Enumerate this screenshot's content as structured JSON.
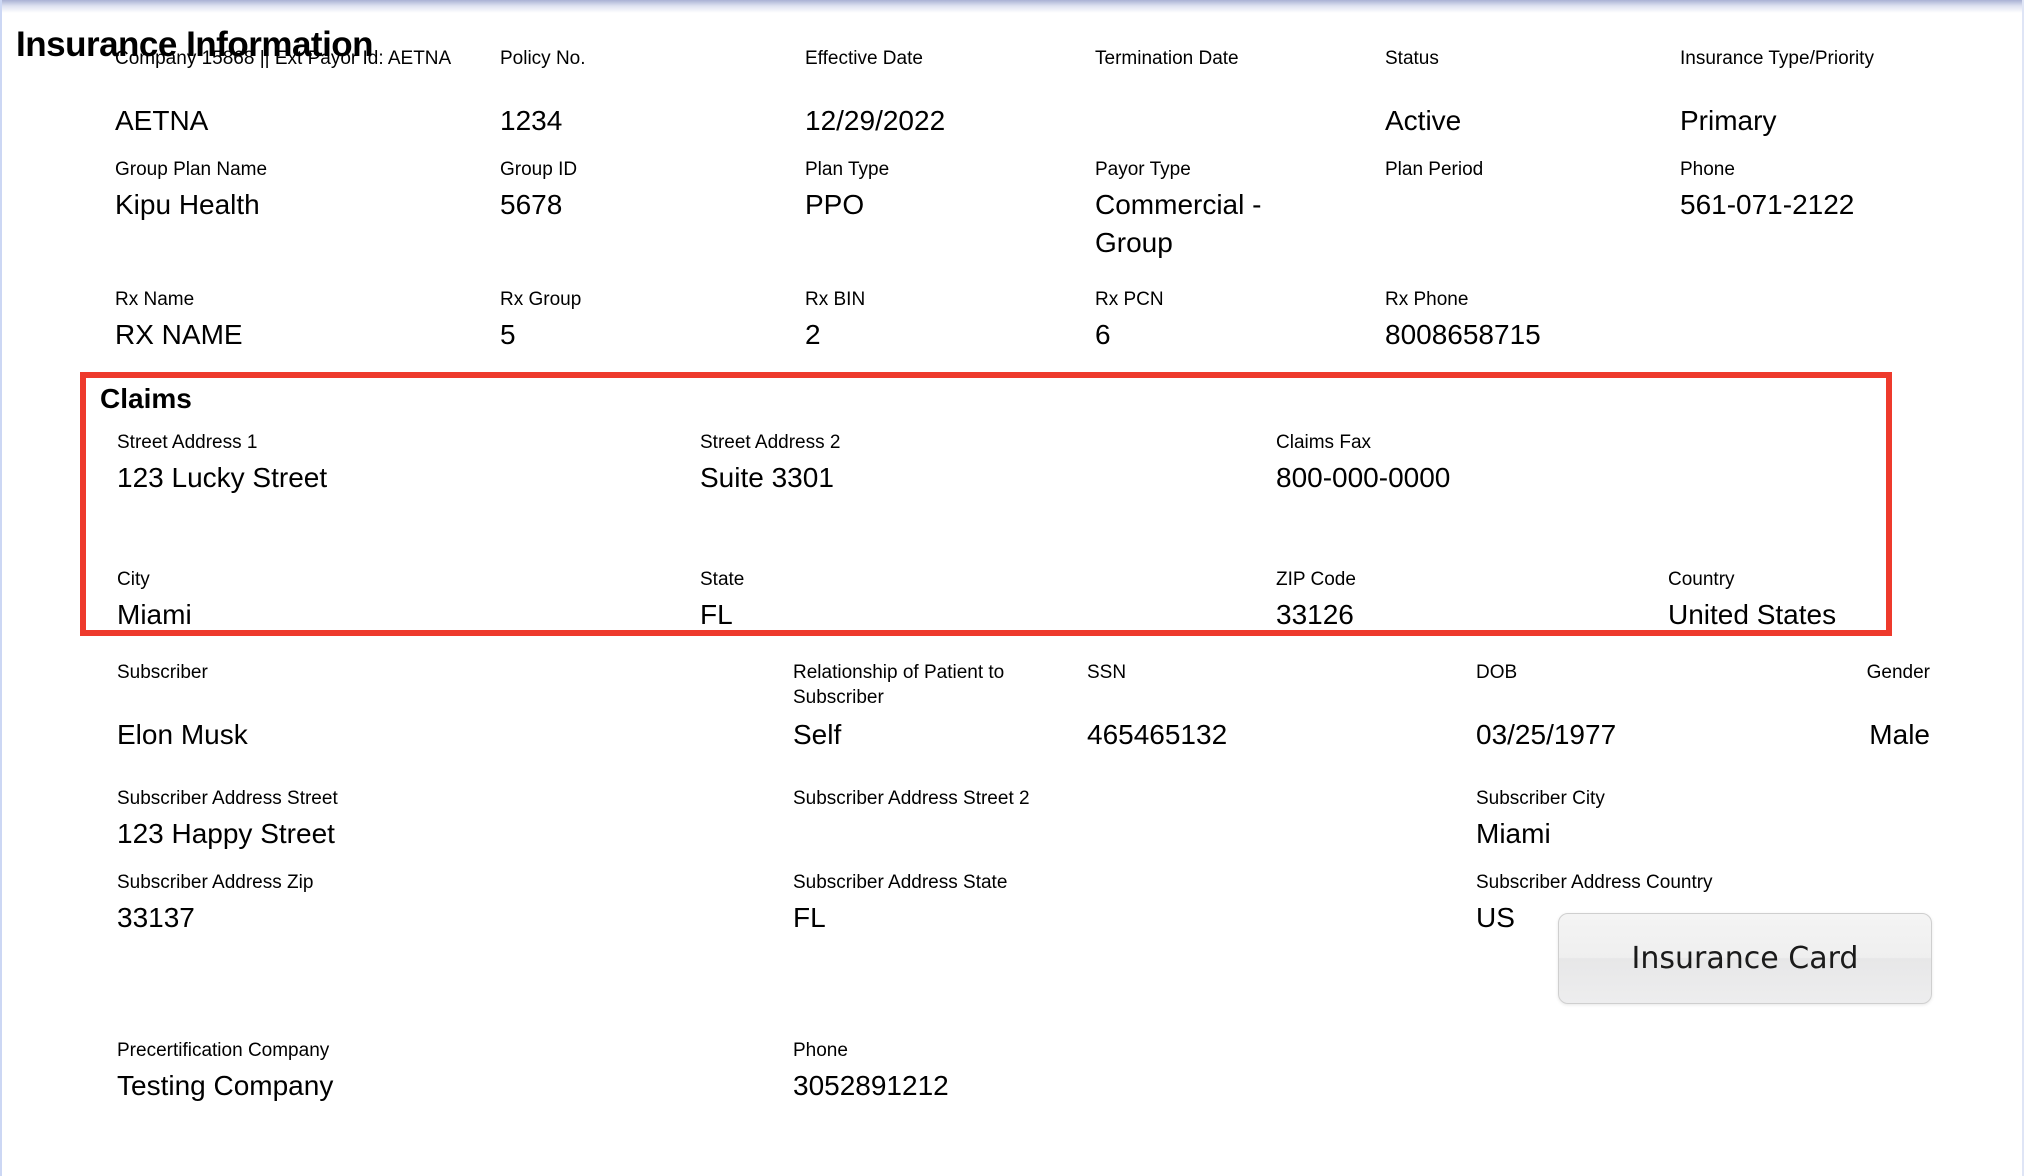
{
  "page": {
    "title": "Insurance Information"
  },
  "colors": {
    "claims_border": "#ee3a2c"
  },
  "insurance": {
    "row1": [
      {
        "label": "Company 15868 || Ext Payor Id: AETNA",
        "value": "AETNA"
      },
      {
        "label": "Policy No.",
        "value": "1234"
      },
      {
        "label": "Effective Date",
        "value": "12/29/2022"
      },
      {
        "label": "Termination Date",
        "value": ""
      },
      {
        "label": "Status",
        "value": "Active"
      },
      {
        "label": "Insurance Type/Priority",
        "value": "Primary"
      }
    ],
    "row2": [
      {
        "label": "Group Plan Name",
        "value": "Kipu Health"
      },
      {
        "label": "Group ID",
        "value": "5678"
      },
      {
        "label": "Plan Type",
        "value": "PPO"
      },
      {
        "label": "Payor Type",
        "value": "Commercial - Group"
      },
      {
        "label": "Plan Period",
        "value": ""
      },
      {
        "label": "Phone",
        "value": "561-071-2122"
      }
    ],
    "row3": [
      {
        "label": "Rx Name",
        "value": "RX NAME"
      },
      {
        "label": "Rx Group",
        "value": "5"
      },
      {
        "label": "Rx BIN",
        "value": "2"
      },
      {
        "label": "Rx PCN",
        "value": "6"
      },
      {
        "label": "Rx Phone",
        "value": "8008658715"
      }
    ]
  },
  "claims": {
    "heading": "Claims",
    "row1": [
      {
        "label": "Street Address 1",
        "value": "123 Lucky Street"
      },
      {
        "label": "Street Address 2",
        "value": "Suite 3301"
      },
      {
        "label": "Claims Fax",
        "value": "800-000-0000"
      }
    ],
    "row2": [
      {
        "label": "City",
        "value": "Miami"
      },
      {
        "label": "State",
        "value": "FL"
      },
      {
        "label": "ZIP Code",
        "value": "33126"
      },
      {
        "label": "Country",
        "value": "United States"
      }
    ]
  },
  "subscriber": {
    "row": [
      {
        "label": "Subscriber",
        "value": "Elon Musk"
      },
      {
        "label": "Relationship of Patient to Subscriber",
        "value": "Self"
      },
      {
        "label": "SSN",
        "value": "465465132"
      },
      {
        "label": "DOB",
        "value": "03/25/1977"
      },
      {
        "label": "Gender",
        "value": "Male"
      }
    ],
    "addr1": [
      {
        "label": "Subscriber Address Street",
        "value": "123 Happy Street"
      },
      {
        "label": "Subscriber Address Street 2",
        "value": ""
      },
      {
        "label": "Subscriber City",
        "value": "Miami"
      }
    ],
    "addr2": [
      {
        "label": "Subscriber Address Zip",
        "value": "33137"
      },
      {
        "label": "Subscriber Address State",
        "value": "FL"
      },
      {
        "label": "Subscriber Address Country",
        "value": "US"
      }
    ]
  },
  "buttons": {
    "insurance_card": "Insurance Card"
  },
  "precertification": [
    {
      "label": "Precertification Company",
      "value": "Testing Company"
    },
    {
      "label": "Phone",
      "value": "3052891212"
    }
  ]
}
